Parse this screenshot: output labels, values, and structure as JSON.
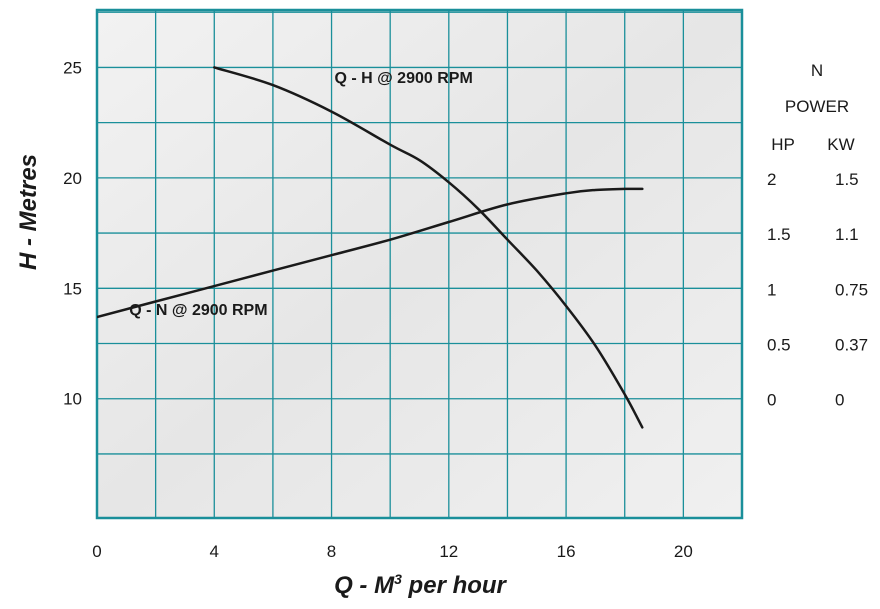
{
  "chart_data": {
    "type": "line",
    "title": "",
    "xlabel": {
      "prefix": "Q - M",
      "superscript": "3",
      "suffix": " per hour"
    },
    "ylabel": "H - Metres",
    "xlim": [
      0,
      22
    ],
    "ylim": [
      4.6,
      27.6
    ],
    "x_ticks": [
      "0",
      "4",
      "8",
      "12",
      "16",
      "20"
    ],
    "y_ticks": [
      "10",
      "15",
      "20",
      "25"
    ],
    "grid": true,
    "colors": {
      "grid": "#1a8f9a",
      "curve": "#1a1a1a",
      "background": "#eeeeee"
    },
    "series": [
      {
        "name": "Q - H @ 2900 RPM",
        "x": [
          4,
          6,
          8,
          10,
          11,
          12,
          13,
          14,
          15,
          16,
          17,
          18,
          18.6
        ],
        "y": [
          25,
          24.2,
          23,
          21.5,
          20.8,
          19.8,
          18.6,
          17.2,
          15.8,
          14.2,
          12.4,
          10.2,
          8.7
        ]
      },
      {
        "name": "Q - N @ 2900 RPM",
        "x": [
          0,
          2,
          4,
          6,
          8,
          10,
          12,
          14,
          16,
          17,
          18,
          18.6
        ],
        "y": [
          13.7,
          14.4,
          15.1,
          15.8,
          16.5,
          17.2,
          18,
          18.8,
          19.3,
          19.45,
          19.5,
          19.5
        ]
      }
    ],
    "secondary_axis": {
      "title_lines": [
        "N",
        "POWER"
      ],
      "columns": [
        "HP",
        "KW"
      ],
      "rows": [
        {
          "h": 20,
          "hp": "2",
          "kw": "1.5"
        },
        {
          "h": 17.5,
          "hp": "1.5",
          "kw": "1.1"
        },
        {
          "h": 15,
          "hp": "1",
          "kw": "0.75"
        },
        {
          "h": 12.5,
          "hp": "0.5",
          "kw": "0.37"
        },
        {
          "h": 10,
          "hp": "0",
          "kw": "0"
        }
      ]
    }
  }
}
